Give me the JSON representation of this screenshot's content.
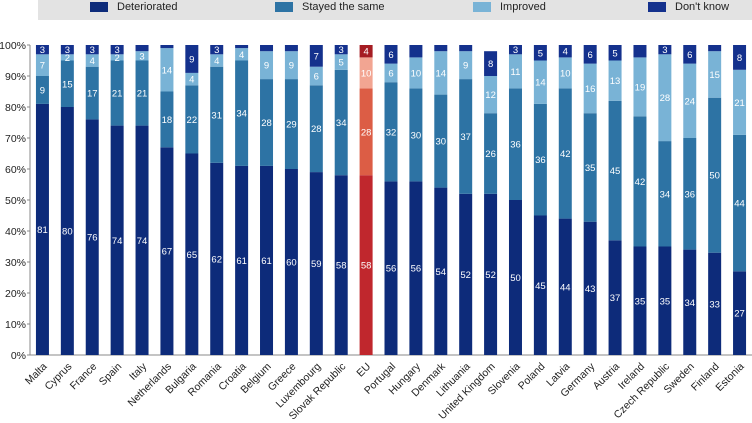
{
  "chart_data": {
    "type": "bar",
    "stacked": true,
    "title": "",
    "xlabel": "",
    "ylabel": "",
    "ylim": [
      0,
      100
    ],
    "y_ticks": [
      "0%",
      "10%",
      "20%",
      "30%",
      "40%",
      "50%",
      "60%",
      "70%",
      "80%",
      "90%",
      "100%"
    ],
    "legend_position": "top",
    "categories": [
      "Malta",
      "Cyprus",
      "France",
      "Spain",
      "Italy",
      "Netherlands",
      "Bulgaria",
      "Romania",
      "Croatia",
      "Belgium",
      "Greece",
      "Luxembourg",
      "Slovak Republic",
      "EU",
      "Portugal",
      "Hungary",
      "Denmark",
      "Lithuania",
      "United Kingdom",
      "Slovenia",
      "Poland",
      "Latvia",
      "Germany",
      "Austria",
      "Ireland",
      "Czech Republic",
      "Sweden",
      "Finland",
      "Estonia"
    ],
    "highlight_category": "EU",
    "series": [
      {
        "name": "Deteriorated",
        "color": "#0d2b7a",
        "highlight_color": "#c0272d",
        "values": [
          81,
          80,
          76,
          74,
          74,
          67,
          65,
          62,
          61,
          61,
          60,
          59,
          58,
          58,
          56,
          56,
          54,
          52,
          52,
          50,
          45,
          44,
          43,
          37,
          35,
          35,
          34,
          33,
          27
        ],
        "labels": [
          "81",
          "80",
          "76",
          "74",
          "74",
          "67",
          "65",
          "62",
          "61",
          "61",
          "60",
          "59",
          "58",
          "58",
          "56",
          "56",
          "54",
          "52",
          "52",
          "50",
          "45",
          "44",
          "43",
          "37",
          "35",
          "35",
          "34",
          "33",
          "27"
        ]
      },
      {
        "name": "Stayed the same",
        "color": "#2d73a4",
        "highlight_color": "#dc5d45",
        "values": [
          9,
          15,
          17,
          21,
          21,
          18,
          22,
          31,
          34,
          28,
          29,
          28,
          34,
          28,
          32,
          30,
          30,
          37,
          26,
          36,
          36,
          42,
          35,
          45,
          42,
          34,
          36,
          50,
          44
        ],
        "labels": [
          "9",
          "15",
          "17",
          "21",
          "21",
          "18",
          "22",
          "31",
          "34",
          "28",
          "29",
          "28",
          "34",
          "28",
          "32",
          "30",
          "30",
          "37",
          "26",
          "36",
          "36",
          "42",
          "35",
          "45",
          "42",
          "34",
          "36",
          "50",
          "44"
        ]
      },
      {
        "name": "Improved",
        "color": "#79b3d6",
        "highlight_color": "#f2a592",
        "values": [
          7,
          2,
          4,
          2,
          3,
          14,
          4,
          4,
          4,
          9,
          9,
          6,
          5,
          10,
          6,
          10,
          14,
          9,
          12,
          11,
          14,
          10,
          16,
          13,
          19,
          28,
          24,
          15,
          21
        ],
        "labels": [
          "7",
          "2",
          "4",
          "2",
          "3",
          "14",
          "4",
          "4",
          "4",
          "9",
          "9",
          "6",
          "5",
          "10",
          "6",
          "10",
          "14",
          "9",
          "12",
          "11",
          "14",
          "10",
          "16",
          "13",
          "19",
          "28",
          "24",
          "15",
          "21"
        ]
      },
      {
        "name": "Don't know",
        "color": "#14318d",
        "highlight_color": "#a51c22",
        "values": [
          3,
          3,
          3,
          3,
          2,
          1,
          9,
          3,
          1,
          2,
          2,
          7,
          3,
          4,
          6,
          4,
          2,
          2,
          8,
          3,
          5,
          4,
          6,
          5,
          4,
          3,
          6,
          2,
          8
        ],
        "labels": [
          "3",
          "3",
          "3",
          "3",
          "",
          "",
          "9",
          "3",
          "",
          "",
          "",
          "7",
          "3",
          "4",
          "6",
          "",
          "",
          "",
          "8",
          "3",
          "5",
          "4",
          "6",
          "5",
          "",
          "3",
          "6",
          "",
          "8"
        ]
      }
    ]
  }
}
